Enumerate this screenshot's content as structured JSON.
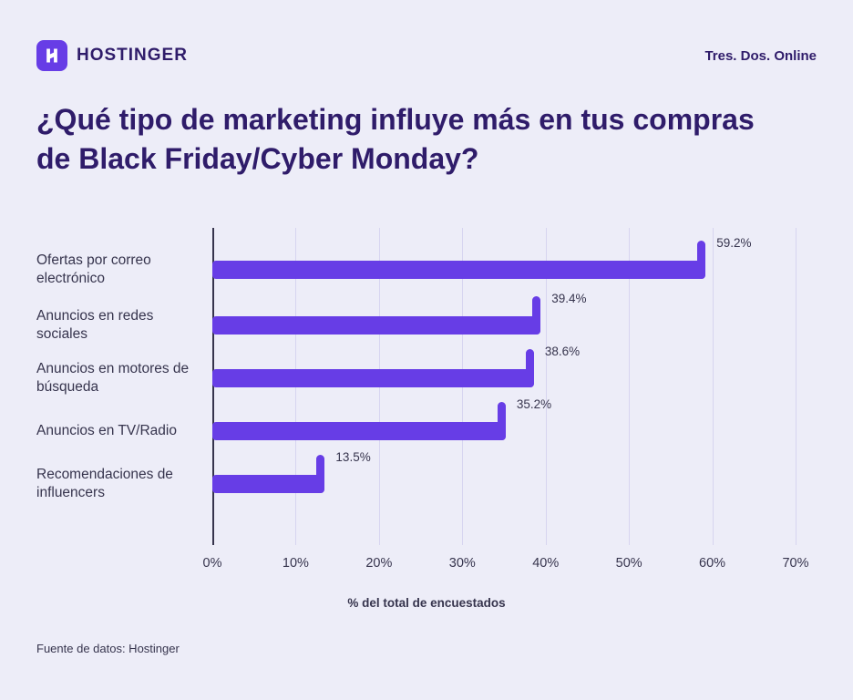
{
  "header": {
    "brand": "HOSTINGER",
    "tagline": "Tres. Dos. Online"
  },
  "title": "¿Qué tipo de marketing influye más en tus compras de Black Friday/Cyber Monday?",
  "chart_data": {
    "type": "bar",
    "orientation": "horizontal",
    "categories": [
      "Ofertas por correo electrónico",
      "Anuncios en redes sociales",
      "Anuncios en motores de búsqueda",
      "Anuncios en TV/Radio",
      "Recomendaciones de influencers"
    ],
    "values": [
      59.2,
      39.4,
      38.6,
      35.2,
      13.5
    ],
    "value_labels": [
      "59.2%",
      "39.4%",
      "38.6%",
      "35.2%",
      "13.5%"
    ],
    "x_ticks": [
      "0%",
      "10%",
      "20%",
      "30%",
      "40%",
      "50%",
      "60%",
      "70%"
    ],
    "xlim": [
      0,
      70
    ],
    "xlabel": "% del total de encuestados",
    "grid": "vertical",
    "legend": "none",
    "bar_color": "#673de6"
  },
  "footer": {
    "source": "Fuente de datos: Hostinger"
  },
  "colors": {
    "background": "#ededf8",
    "bar": "#673de6",
    "title": "#2f1c6a",
    "text": "#36344d",
    "gridline": "#d7d5f0"
  }
}
